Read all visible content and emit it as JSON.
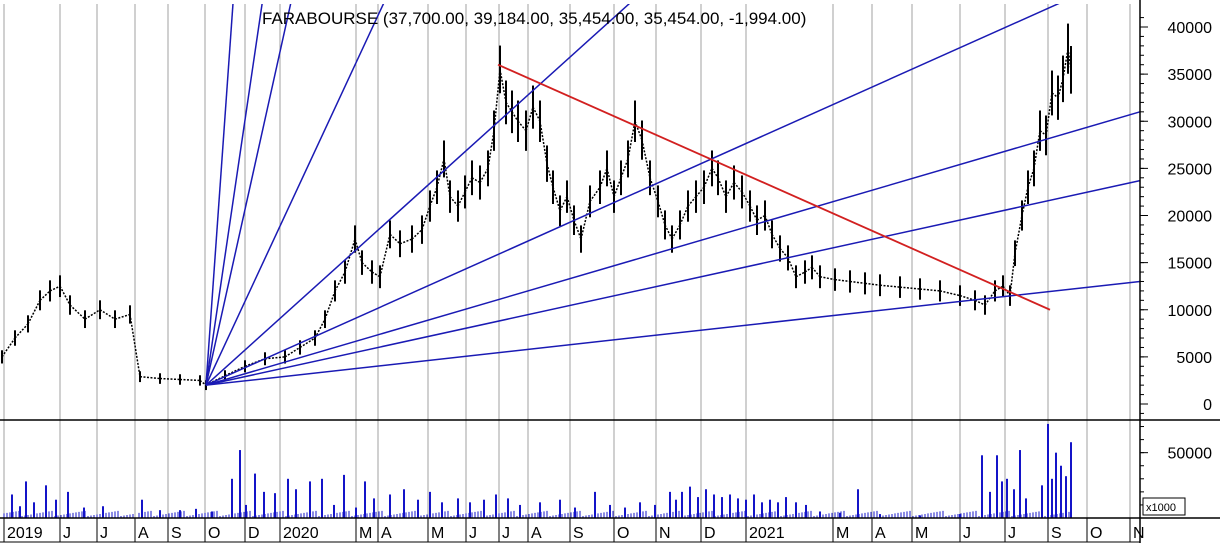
{
  "chart_data": {
    "type": "line",
    "title": "FARABOURSE (37,700.00, 39,184.00, 35,454.00, 35,454.00, -1,994.00)",
    "price_axis": {
      "ylim": [
        -2000,
        41000
      ],
      "ticks": [
        {
          "value": 40000,
          "label": "40000"
        },
        {
          "value": 35000,
          "label": "35000"
        },
        {
          "value": 30000,
          "label": "30000"
        },
        {
          "value": 25000,
          "label": "25000"
        },
        {
          "value": 20000,
          "label": "20000"
        },
        {
          "value": 15000,
          "label": "15000"
        },
        {
          "value": 10000,
          "label": "10000"
        },
        {
          "value": 5000,
          "label": "5000"
        },
        {
          "value": 0,
          "label": "0"
        }
      ]
    },
    "volume_axis": {
      "ylim": [
        0,
        75000
      ],
      "ticks": [
        {
          "value": 50000,
          "label": "50000"
        }
      ],
      "multiplier_label": "x1000"
    },
    "x_axis": {
      "xlim": [
        0,
        1140
      ],
      "months": [
        {
          "x": 4,
          "label": "2019"
        },
        {
          "x": 60,
          "label": "J"
        },
        {
          "x": 97,
          "label": "J"
        },
        {
          "x": 135,
          "label": "A"
        },
        {
          "x": 168,
          "label": "S"
        },
        {
          "x": 205,
          "label": "O"
        },
        {
          "x": 245,
          "label": "D"
        },
        {
          "x": 280,
          "label": "2020"
        },
        {
          "x": 356,
          "label": "M"
        },
        {
          "x": 378,
          "label": "A"
        },
        {
          "x": 428,
          "label": "M"
        },
        {
          "x": 466,
          "label": "J"
        },
        {
          "x": 499,
          "label": "J"
        },
        {
          "x": 528,
          "label": "A"
        },
        {
          "x": 570,
          "label": "S"
        },
        {
          "x": 614,
          "label": "O"
        },
        {
          "x": 656,
          "label": "N"
        },
        {
          "x": 701,
          "label": "D"
        },
        {
          "x": 746,
          "label": "2021"
        },
        {
          "x": 833,
          "label": "M"
        },
        {
          "x": 872,
          "label": "A"
        },
        {
          "x": 912,
          "label": "M"
        },
        {
          "x": 960,
          "label": "J"
        },
        {
          "x": 1005,
          "label": "J"
        },
        {
          "x": 1048,
          "label": "S"
        },
        {
          "x": 1087,
          "label": "O"
        },
        {
          "x": 1130,
          "label": "N"
        }
      ]
    },
    "price_series": [
      {
        "x": 2,
        "y": 5000
      },
      {
        "x": 15,
        "y": 7000
      },
      {
        "x": 28,
        "y": 8500
      },
      {
        "x": 40,
        "y": 11000
      },
      {
        "x": 50,
        "y": 12000
      },
      {
        "x": 60,
        "y": 12500
      },
      {
        "x": 70,
        "y": 10500
      },
      {
        "x": 85,
        "y": 9000
      },
      {
        "x": 100,
        "y": 10000
      },
      {
        "x": 115,
        "y": 9000
      },
      {
        "x": 130,
        "y": 9500
      },
      {
        "x": 140,
        "y": 2900
      },
      {
        "x": 160,
        "y": 2700
      },
      {
        "x": 180,
        "y": 2600
      },
      {
        "x": 200,
        "y": 2500
      },
      {
        "x": 206,
        "y": 2000
      },
      {
        "x": 225,
        "y": 3000
      },
      {
        "x": 245,
        "y": 4000
      },
      {
        "x": 265,
        "y": 4800
      },
      {
        "x": 285,
        "y": 5000
      },
      {
        "x": 300,
        "y": 6000
      },
      {
        "x": 315,
        "y": 7000
      },
      {
        "x": 325,
        "y": 9000
      },
      {
        "x": 335,
        "y": 12000
      },
      {
        "x": 345,
        "y": 14000
      },
      {
        "x": 355,
        "y": 17500
      },
      {
        "x": 362,
        "y": 15000
      },
      {
        "x": 372,
        "y": 14000
      },
      {
        "x": 380,
        "y": 13500
      },
      {
        "x": 390,
        "y": 18000
      },
      {
        "x": 400,
        "y": 17000
      },
      {
        "x": 412,
        "y": 17500
      },
      {
        "x": 422,
        "y": 18500
      },
      {
        "x": 430,
        "y": 21000
      },
      {
        "x": 437,
        "y": 23000
      },
      {
        "x": 444,
        "y": 26000
      },
      {
        "x": 450,
        "y": 22000
      },
      {
        "x": 458,
        "y": 21000
      },
      {
        "x": 465,
        "y": 22500
      },
      {
        "x": 472,
        "y": 24000
      },
      {
        "x": 480,
        "y": 23500
      },
      {
        "x": 488,
        "y": 25000
      },
      {
        "x": 494,
        "y": 29000
      },
      {
        "x": 500,
        "y": 35500
      },
      {
        "x": 506,
        "y": 32000
      },
      {
        "x": 512,
        "y": 31000
      },
      {
        "x": 518,
        "y": 30000
      },
      {
        "x": 526,
        "y": 29000
      },
      {
        "x": 533,
        "y": 31500
      },
      {
        "x": 540,
        "y": 30000
      },
      {
        "x": 547,
        "y": 25500
      },
      {
        "x": 553,
        "y": 23000
      },
      {
        "x": 560,
        "y": 20500
      },
      {
        "x": 567,
        "y": 22000
      },
      {
        "x": 574,
        "y": 19500
      },
      {
        "x": 581,
        "y": 17500
      },
      {
        "x": 590,
        "y": 21500
      },
      {
        "x": 600,
        "y": 23000
      },
      {
        "x": 607,
        "y": 25000
      },
      {
        "x": 614,
        "y": 22000
      },
      {
        "x": 621,
        "y": 24000
      },
      {
        "x": 628,
        "y": 26000
      },
      {
        "x": 635,
        "y": 30000
      },
      {
        "x": 642,
        "y": 28000
      },
      {
        "x": 650,
        "y": 24000
      },
      {
        "x": 658,
        "y": 21500
      },
      {
        "x": 665,
        "y": 19000
      },
      {
        "x": 672,
        "y": 17500
      },
      {
        "x": 680,
        "y": 19000
      },
      {
        "x": 688,
        "y": 21000
      },
      {
        "x": 696,
        "y": 22000
      },
      {
        "x": 704,
        "y": 23000
      },
      {
        "x": 712,
        "y": 25000
      },
      {
        "x": 718,
        "y": 24000
      },
      {
        "x": 726,
        "y": 22000
      },
      {
        "x": 734,
        "y": 23500
      },
      {
        "x": 742,
        "y": 22500
      },
      {
        "x": 750,
        "y": 21000
      },
      {
        "x": 757,
        "y": 19500
      },
      {
        "x": 765,
        "y": 20000
      },
      {
        "x": 772,
        "y": 18000
      },
      {
        "x": 780,
        "y": 16500
      },
      {
        "x": 788,
        "y": 15500
      },
      {
        "x": 796,
        "y": 13500
      },
      {
        "x": 805,
        "y": 14000
      },
      {
        "x": 812,
        "y": 14500
      },
      {
        "x": 820,
        "y": 13500
      },
      {
        "x": 835,
        "y": 13200
      },
      {
        "x": 850,
        "y": 13000
      },
      {
        "x": 865,
        "y": 12800
      },
      {
        "x": 880,
        "y": 12600
      },
      {
        "x": 900,
        "y": 12400
      },
      {
        "x": 920,
        "y": 12200
      },
      {
        "x": 940,
        "y": 12000
      },
      {
        "x": 960,
        "y": 11500
      },
      {
        "x": 975,
        "y": 11000
      },
      {
        "x": 985,
        "y": 10500
      },
      {
        "x": 995,
        "y": 12000
      },
      {
        "x": 1003,
        "y": 12500
      },
      {
        "x": 1010,
        "y": 11500
      },
      {
        "x": 1015,
        "y": 16000
      },
      {
        "x": 1022,
        "y": 20000
      },
      {
        "x": 1028,
        "y": 23000
      },
      {
        "x": 1034,
        "y": 25000
      },
      {
        "x": 1040,
        "y": 29000
      },
      {
        "x": 1046,
        "y": 28500
      },
      {
        "x": 1052,
        "y": 33000
      },
      {
        "x": 1058,
        "y": 32500
      },
      {
        "x": 1063,
        "y": 34500
      },
      {
        "x": 1068,
        "y": 37700
      },
      {
        "x": 1071,
        "y": 35454
      }
    ],
    "fan_lines": {
      "origin": {
        "x": 206,
        "y": 2000
      },
      "through": [
        {
          "x": 236,
          "y": 47000
        },
        {
          "x": 267,
          "y": 46000
        },
        {
          "x": 297,
          "y": 45500
        },
        {
          "x": 388,
          "y": 43500
        },
        {
          "x": 640,
          "y": 43500
        },
        {
          "x": 1080,
          "y": 43500
        },
        {
          "x": 1140,
          "y": 31000
        },
        {
          "x": 1140,
          "y": 23700
        },
        {
          "x": 1140,
          "y": 13000
        }
      ]
    },
    "trend_line": {
      "start": {
        "x": 498,
        "y": 36000
      },
      "end": {
        "x": 1050,
        "y": 10000
      }
    },
    "volume_series": [
      {
        "x": 12,
        "v": 18000
      },
      {
        "x": 20,
        "v": 9000
      },
      {
        "x": 26,
        "v": 28000
      },
      {
        "x": 34,
        "v": 12000
      },
      {
        "x": 46,
        "v": 25000
      },
      {
        "x": 56,
        "v": 14000
      },
      {
        "x": 68,
        "v": 20000
      },
      {
        "x": 84,
        "v": 8000
      },
      {
        "x": 103,
        "v": 9000
      },
      {
        "x": 142,
        "v": 14000
      },
      {
        "x": 160,
        "v": 6000
      },
      {
        "x": 180,
        "v": 6000
      },
      {
        "x": 196,
        "v": 7000
      },
      {
        "x": 212,
        "v": 5000
      },
      {
        "x": 232,
        "v": 30000
      },
      {
        "x": 240,
        "v": 52000
      },
      {
        "x": 246,
        "v": 10000
      },
      {
        "x": 255,
        "v": 34000
      },
      {
        "x": 264,
        "v": 20000
      },
      {
        "x": 275,
        "v": 19000
      },
      {
        "x": 288,
        "v": 30000
      },
      {
        "x": 296,
        "v": 22000
      },
      {
        "x": 310,
        "v": 28000
      },
      {
        "x": 322,
        "v": 30000
      },
      {
        "x": 334,
        "v": 10000
      },
      {
        "x": 344,
        "v": 33000
      },
      {
        "x": 356,
        "v": 8000
      },
      {
        "x": 365,
        "v": 28000
      },
      {
        "x": 374,
        "v": 15000
      },
      {
        "x": 390,
        "v": 18000
      },
      {
        "x": 404,
        "v": 22000
      },
      {
        "x": 418,
        "v": 14000
      },
      {
        "x": 430,
        "v": 20000
      },
      {
        "x": 442,
        "v": 12000
      },
      {
        "x": 458,
        "v": 15000
      },
      {
        "x": 470,
        "v": 12000
      },
      {
        "x": 484,
        "v": 14000
      },
      {
        "x": 496,
        "v": 18000
      },
      {
        "x": 508,
        "v": 15000
      },
      {
        "x": 520,
        "v": 10000
      },
      {
        "x": 540,
        "v": 12000
      },
      {
        "x": 560,
        "v": 14000
      },
      {
        "x": 575,
        "v": 8000
      },
      {
        "x": 595,
        "v": 20000
      },
      {
        "x": 610,
        "v": 10000
      },
      {
        "x": 625,
        "v": 8000
      },
      {
        "x": 640,
        "v": 12000
      },
      {
        "x": 655,
        "v": 10000
      },
      {
        "x": 670,
        "v": 20000
      },
      {
        "x": 676,
        "v": 14000
      },
      {
        "x": 682,
        "v": 20000
      },
      {
        "x": 690,
        "v": 24000
      },
      {
        "x": 698,
        "v": 16000
      },
      {
        "x": 706,
        "v": 22000
      },
      {
        "x": 714,
        "v": 18000
      },
      {
        "x": 722,
        "v": 16000
      },
      {
        "x": 730,
        "v": 18000
      },
      {
        "x": 738,
        "v": 15000
      },
      {
        "x": 746,
        "v": 14000
      },
      {
        "x": 754,
        "v": 18000
      },
      {
        "x": 762,
        "v": 12000
      },
      {
        "x": 770,
        "v": 14000
      },
      {
        "x": 778,
        "v": 12000
      },
      {
        "x": 786,
        "v": 16000
      },
      {
        "x": 796,
        "v": 12000
      },
      {
        "x": 806,
        "v": 10000
      },
      {
        "x": 820,
        "v": 5000
      },
      {
        "x": 840,
        "v": 4000
      },
      {
        "x": 858,
        "v": 22000
      },
      {
        "x": 880,
        "v": 3000
      },
      {
        "x": 920,
        "v": 2000
      },
      {
        "x": 960,
        "v": 3000
      },
      {
        "x": 982,
        "v": 48000
      },
      {
        "x": 990,
        "v": 20000
      },
      {
        "x": 997,
        "v": 48000
      },
      {
        "x": 1002,
        "v": 28000
      },
      {
        "x": 1007,
        "v": 30000
      },
      {
        "x": 1014,
        "v": 22000
      },
      {
        "x": 1020,
        "v": 52000
      },
      {
        "x": 1026,
        "v": 15000
      },
      {
        "x": 1042,
        "v": 25000
      },
      {
        "x": 1048,
        "v": 72000
      },
      {
        "x": 1052,
        "v": 30000
      },
      {
        "x": 1056,
        "v": 50000
      },
      {
        "x": 1061,
        "v": 40000
      },
      {
        "x": 1066,
        "v": 32000
      },
      {
        "x": 1071,
        "v": 58000
      }
    ],
    "colors": {
      "background": "#ffffff",
      "grid": "#a0a0a0",
      "fan": "#1a1ab4",
      "trend": "#d22020",
      "volume": "#1414c8",
      "price": "#000000"
    },
    "grid": true
  }
}
